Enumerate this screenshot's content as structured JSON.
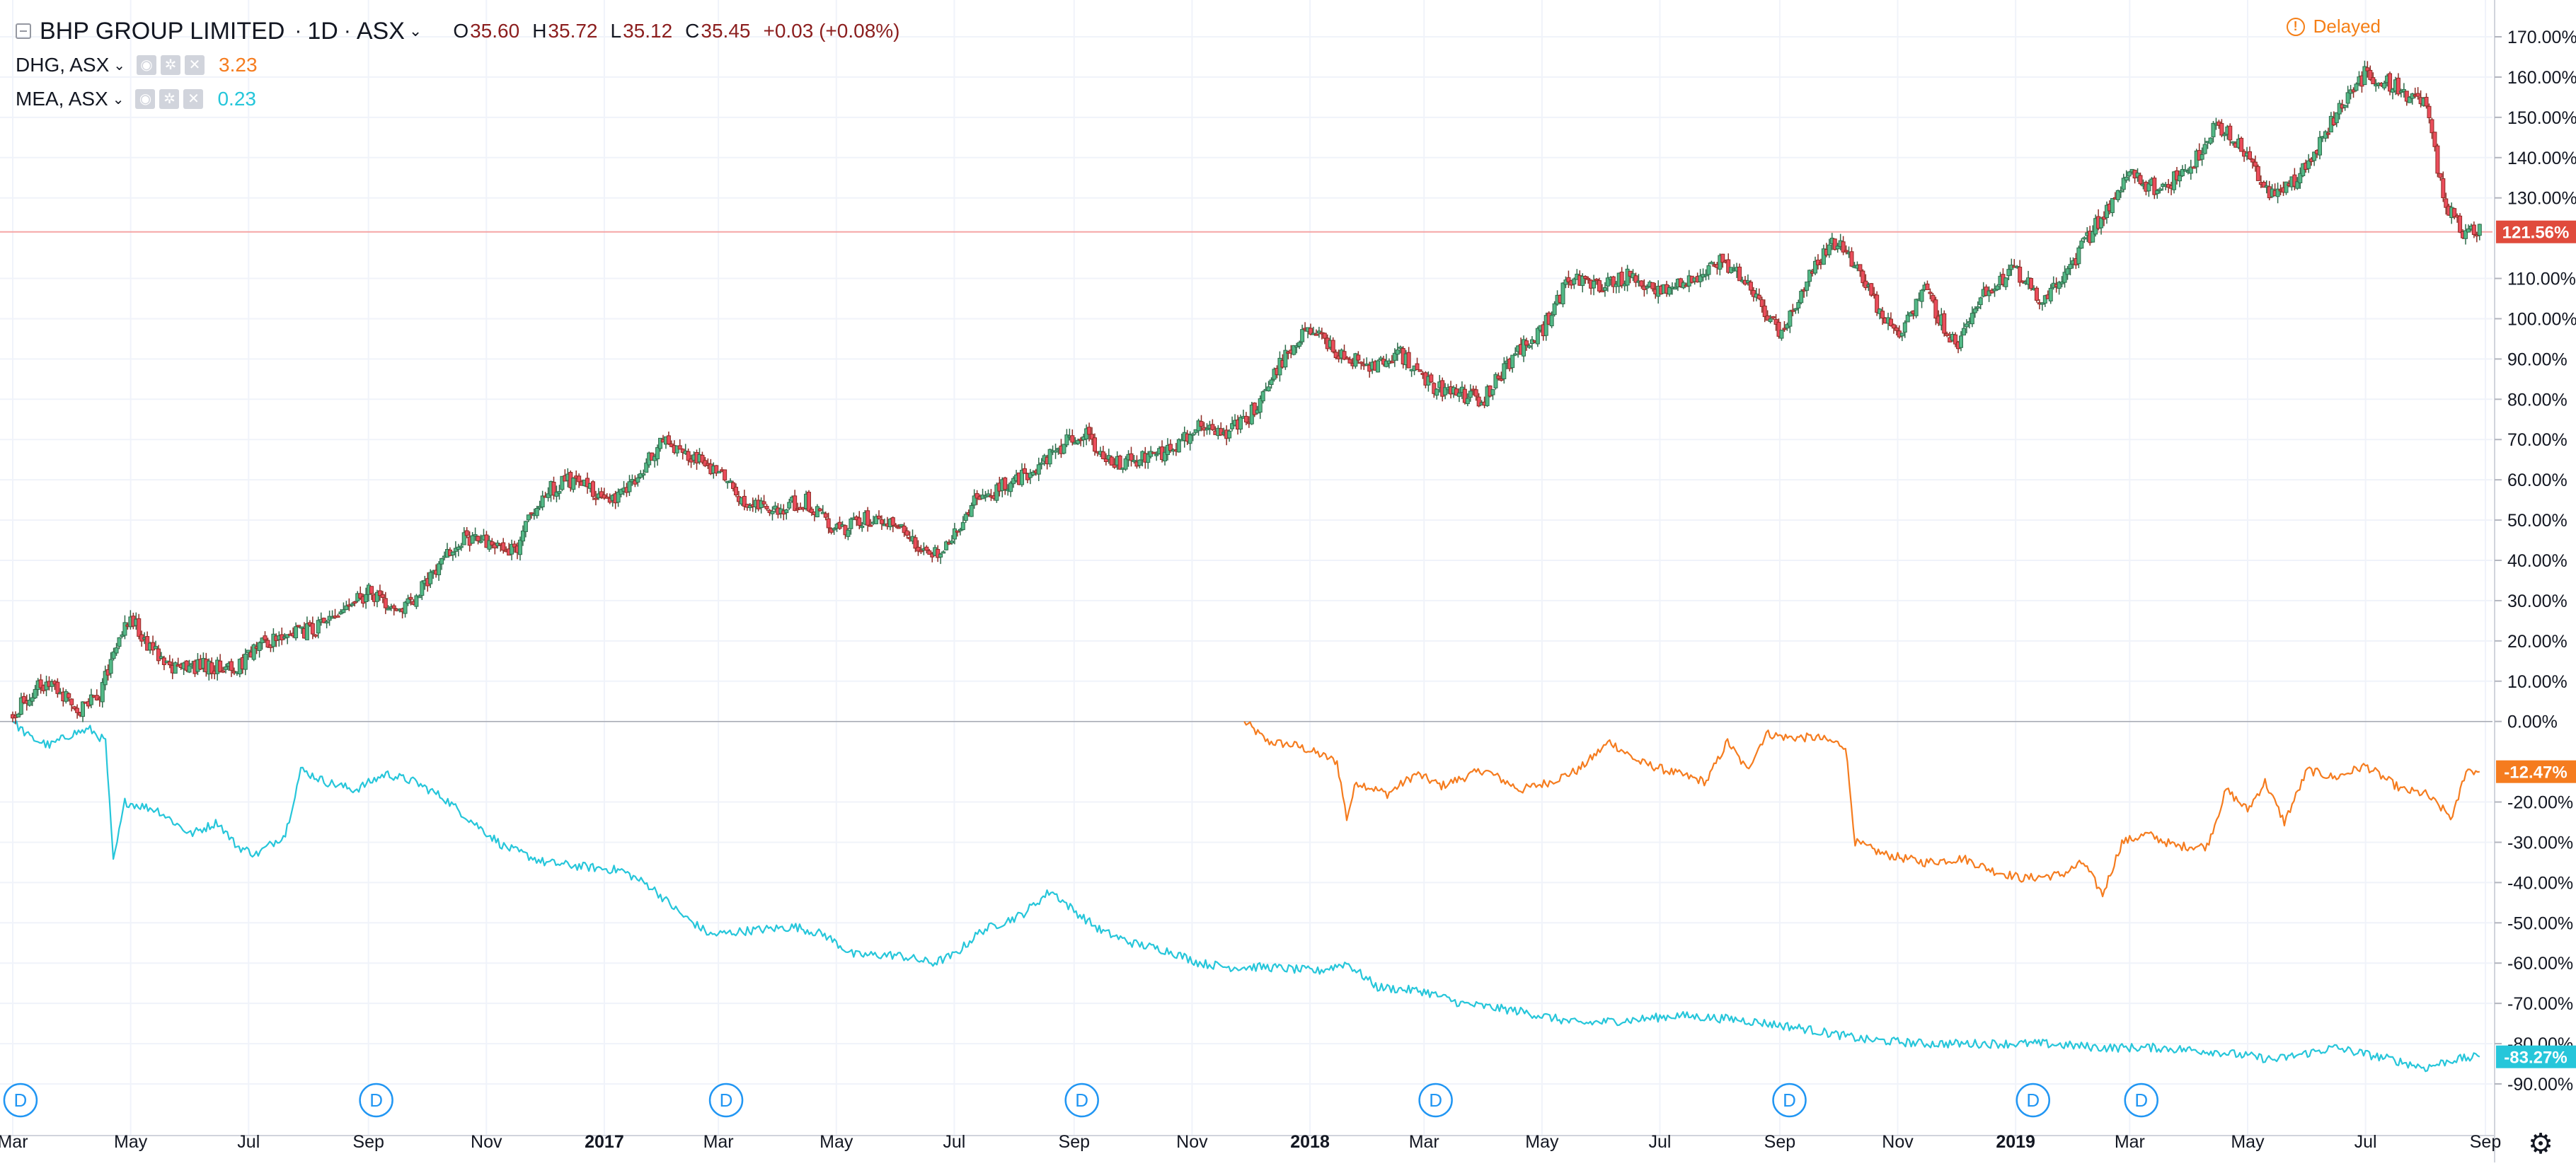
{
  "legend": {
    "main": {
      "title": "BHP GROUP LIMITED",
      "interval": "1D",
      "exchange": "ASX",
      "open_label": "O",
      "open": "35.60",
      "high_label": "H",
      "high": "35.72",
      "low_label": "L",
      "low": "35.12",
      "close_label": "C",
      "close": "35.45",
      "change": "+0.03 (+0.08%)"
    },
    "compare": [
      {
        "symbol": "DHG, ASX",
        "value": "3.23",
        "color": "#f57c1f"
      },
      {
        "symbol": "MEA, ASX",
        "value": "0.23",
        "color": "#26c6da"
      }
    ]
  },
  "status": {
    "delayed": "Delayed",
    "icon": "info-icon"
  },
  "colors": {
    "up": "#53b987",
    "down": "#eb4d5c",
    "up_dark": "#2e6b4a",
    "down_dark": "#8f2b24",
    "dhg": "#f57c1f",
    "mea": "#26c6da",
    "price_line": "#f5a5a5",
    "zero_line": "#9598a1",
    "grid": "#f0f3fa",
    "axis_text": "#131722"
  },
  "chart_data": {
    "type": "line",
    "title": "BHP GROUP LIMITED",
    "xlabel": "",
    "ylabel": "",
    "y_unit": "%",
    "ylim": [
      -96,
      176
    ],
    "x_range": [
      "2016-03-01",
      "2019-09-01"
    ],
    "grid": true,
    "legend_position": "top-left",
    "x_ticks": [
      {
        "date": "2016-03-01",
        "label": "Mar",
        "bold": false
      },
      {
        "date": "2016-05-01",
        "label": "May",
        "bold": false
      },
      {
        "date": "2016-07-01",
        "label": "Jul",
        "bold": false
      },
      {
        "date": "2016-09-01",
        "label": "Sep",
        "bold": false
      },
      {
        "date": "2016-11-01",
        "label": "Nov",
        "bold": false
      },
      {
        "date": "2017-01-01",
        "label": "2017",
        "bold": true
      },
      {
        "date": "2017-03-01",
        "label": "Mar",
        "bold": false
      },
      {
        "date": "2017-05-01",
        "label": "May",
        "bold": false
      },
      {
        "date": "2017-07-01",
        "label": "Jul",
        "bold": false
      },
      {
        "date": "2017-09-01",
        "label": "Sep",
        "bold": false
      },
      {
        "date": "2017-11-01",
        "label": "Nov",
        "bold": false
      },
      {
        "date": "2018-01-01",
        "label": "2018",
        "bold": true
      },
      {
        "date": "2018-03-01",
        "label": "Mar",
        "bold": false
      },
      {
        "date": "2018-05-01",
        "label": "May",
        "bold": false
      },
      {
        "date": "2018-07-01",
        "label": "Jul",
        "bold": false
      },
      {
        "date": "2018-09-01",
        "label": "Sep",
        "bold": false
      },
      {
        "date": "2018-11-01",
        "label": "Nov",
        "bold": false
      },
      {
        "date": "2019-01-01",
        "label": "2019",
        "bold": true
      },
      {
        "date": "2019-03-01",
        "label": "Mar",
        "bold": false
      },
      {
        "date": "2019-05-01",
        "label": "May",
        "bold": false
      },
      {
        "date": "2019-07-01",
        "label": "Jul",
        "bold": false
      },
      {
        "date": "2019-09-01",
        "label": "Sep",
        "bold": false
      }
    ],
    "y_ticks": [
      {
        "value": 170,
        "label": "170.00%"
      },
      {
        "value": 160,
        "label": "160.00%"
      },
      {
        "value": 150,
        "label": "150.00%"
      },
      {
        "value": 140,
        "label": "140.00%"
      },
      {
        "value": 130,
        "label": "130.00%"
      },
      {
        "value": 110,
        "label": "110.00%"
      },
      {
        "value": 100,
        "label": "100.00%"
      },
      {
        "value": 90,
        "label": "90.00%"
      },
      {
        "value": 80,
        "label": "80.00%"
      },
      {
        "value": 70,
        "label": "70.00%"
      },
      {
        "value": 60,
        "label": "60.00%"
      },
      {
        "value": 50,
        "label": "50.00%"
      },
      {
        "value": 40,
        "label": "40.00%"
      },
      {
        "value": 30,
        "label": "30.00%"
      },
      {
        "value": 20,
        "label": "20.00%"
      },
      {
        "value": 10,
        "label": "10.00%"
      },
      {
        "value": 0,
        "label": "0.00%"
      },
      {
        "value": -20,
        "label": "-20.00%"
      },
      {
        "value": -30,
        "label": "-30.00%"
      },
      {
        "value": -40,
        "label": "-40.00%"
      },
      {
        "value": -50,
        "label": "-50.00%"
      },
      {
        "value": -60,
        "label": "-60.00%"
      },
      {
        "value": -70,
        "label": "-70.00%"
      },
      {
        "value": -80,
        "label": "-80.00%"
      },
      {
        "value": -90,
        "label": "-90.00%"
      }
    ],
    "price_labels": [
      {
        "series": "BHP",
        "value": 121.56,
        "label": "121.56%",
        "color": "#e04b3c"
      },
      {
        "series": "DHG",
        "value": -12.47,
        "label": "-12.47%",
        "color": "#f57c1f"
      },
      {
        "series": "MEA",
        "value": -83.27,
        "label": "-83.27%",
        "color": "#26c6da"
      }
    ],
    "dividends": {
      "label": "D",
      "dates": [
        "2016-03-05",
        "2016-09-05",
        "2017-03-05",
        "2017-09-05",
        "2018-03-07",
        "2018-09-06",
        "2019-01-10",
        "2019-03-07"
      ]
    },
    "series": [
      {
        "name": "BHP GROUP LIMITED",
        "kind": "candlestick",
        "points": [
          [
            "2016-03-01",
            2
          ],
          [
            "2016-03-15",
            10
          ],
          [
            "2016-03-25",
            8
          ],
          [
            "2016-04-05",
            3
          ],
          [
            "2016-04-15",
            6
          ],
          [
            "2016-04-25",
            22
          ],
          [
            "2016-05-01",
            27
          ],
          [
            "2016-05-10",
            18
          ],
          [
            "2016-05-25",
            13
          ],
          [
            "2016-06-10",
            14
          ],
          [
            "2016-06-25",
            13
          ],
          [
            "2016-07-05",
            19
          ],
          [
            "2016-07-20",
            21
          ],
          [
            "2016-08-05",
            23
          ],
          [
            "2016-08-20",
            28
          ],
          [
            "2016-09-01",
            32
          ],
          [
            "2016-09-15",
            26
          ],
          [
            "2016-09-25",
            30
          ],
          [
            "2016-10-05",
            38
          ],
          [
            "2016-10-20",
            45
          ],
          [
            "2016-11-05",
            44
          ],
          [
            "2016-11-15",
            42
          ],
          [
            "2016-12-01",
            57
          ],
          [
            "2016-12-15",
            60
          ],
          [
            "2017-01-05",
            54
          ],
          [
            "2017-01-20",
            62
          ],
          [
            "2017-02-01",
            70
          ],
          [
            "2017-02-15",
            66
          ],
          [
            "2017-03-01",
            62
          ],
          [
            "2017-03-15",
            53
          ],
          [
            "2017-04-01",
            53
          ],
          [
            "2017-04-15",
            55
          ],
          [
            "2017-05-01",
            47
          ],
          [
            "2017-05-15",
            50
          ],
          [
            "2017-06-01",
            50
          ],
          [
            "2017-06-15",
            42
          ],
          [
            "2017-06-25",
            41
          ],
          [
            "2017-07-10",
            54
          ],
          [
            "2017-07-25",
            58
          ],
          [
            "2017-08-10",
            62
          ],
          [
            "2017-08-25",
            68
          ],
          [
            "2017-09-05",
            72
          ],
          [
            "2017-09-20",
            64
          ],
          [
            "2017-10-05",
            65
          ],
          [
            "2017-10-20",
            67
          ],
          [
            "2017-11-05",
            73
          ],
          [
            "2017-11-20",
            72
          ],
          [
            "2017-12-01",
            76
          ],
          [
            "2017-12-15",
            88
          ],
          [
            "2018-01-01",
            98
          ],
          [
            "2018-01-15",
            92
          ],
          [
            "2018-02-01",
            88
          ],
          [
            "2018-02-15",
            92
          ],
          [
            "2018-03-01",
            84
          ],
          [
            "2018-03-15",
            82
          ],
          [
            "2018-04-01",
            80
          ],
          [
            "2018-04-15",
            90
          ],
          [
            "2018-05-01",
            97
          ],
          [
            "2018-05-15",
            110
          ],
          [
            "2018-06-01",
            108
          ],
          [
            "2018-06-15",
            111
          ],
          [
            "2018-07-01",
            107
          ],
          [
            "2018-07-15",
            109
          ],
          [
            "2018-08-01",
            114
          ],
          [
            "2018-08-15",
            110
          ],
          [
            "2018-09-01",
            96
          ],
          [
            "2018-09-15",
            110
          ],
          [
            "2018-10-01",
            120
          ],
          [
            "2018-10-15",
            108
          ],
          [
            "2018-11-01",
            95
          ],
          [
            "2018-11-15",
            107
          ],
          [
            "2018-12-01",
            93
          ],
          [
            "2018-12-15",
            107
          ],
          [
            "2019-01-01",
            112
          ],
          [
            "2019-01-15",
            104
          ],
          [
            "2019-02-01",
            115
          ],
          [
            "2019-02-15",
            126
          ],
          [
            "2019-03-01",
            136
          ],
          [
            "2019-03-15",
            132
          ],
          [
            "2019-04-01",
            137
          ],
          [
            "2019-04-15",
            149
          ],
          [
            "2019-05-01",
            140
          ],
          [
            "2019-05-15",
            130
          ],
          [
            "2019-06-01",
            138
          ],
          [
            "2019-06-15",
            150
          ],
          [
            "2019-07-01",
            161
          ],
          [
            "2019-07-15",
            158
          ],
          [
            "2019-08-01",
            153
          ],
          [
            "2019-08-10",
            130
          ],
          [
            "2019-08-20",
            121
          ],
          [
            "2019-08-29",
            121.56
          ]
        ]
      },
      {
        "name": "DHG, ASX",
        "kind": "line",
        "points": [
          [
            "2017-11-28",
            0
          ],
          [
            "2017-12-10",
            -5
          ],
          [
            "2017-12-25",
            -6
          ],
          [
            "2018-01-05",
            -8
          ],
          [
            "2018-01-15",
            -10
          ],
          [
            "2018-01-20",
            -24
          ],
          [
            "2018-01-25",
            -15
          ],
          [
            "2018-02-10",
            -18
          ],
          [
            "2018-02-25",
            -13
          ],
          [
            "2018-03-10",
            -16
          ],
          [
            "2018-04-01",
            -12
          ],
          [
            "2018-04-20",
            -17
          ],
          [
            "2018-05-05",
            -15
          ],
          [
            "2018-05-20",
            -12
          ],
          [
            "2018-06-05",
            -5
          ],
          [
            "2018-06-20",
            -10
          ],
          [
            "2018-07-10",
            -13
          ],
          [
            "2018-07-25",
            -15
          ],
          [
            "2018-08-05",
            -5
          ],
          [
            "2018-08-15",
            -12
          ],
          [
            "2018-08-25",
            -3
          ],
          [
            "2018-09-05",
            -4
          ],
          [
            "2018-09-20",
            -4
          ],
          [
            "2018-10-05",
            -6
          ],
          [
            "2018-10-10",
            -30
          ],
          [
            "2018-10-25",
            -33
          ],
          [
            "2018-11-15",
            -35
          ],
          [
            "2018-12-05",
            -34
          ],
          [
            "2018-12-20",
            -37
          ],
          [
            "2019-01-05",
            -39
          ],
          [
            "2019-01-25",
            -38
          ],
          [
            "2019-02-05",
            -35
          ],
          [
            "2019-02-15",
            -43
          ],
          [
            "2019-02-25",
            -30
          ],
          [
            "2019-03-10",
            -28
          ],
          [
            "2019-03-25",
            -31
          ],
          [
            "2019-04-10",
            -31
          ],
          [
            "2019-04-20",
            -17
          ],
          [
            "2019-05-01",
            -22
          ],
          [
            "2019-05-10",
            -15
          ],
          [
            "2019-05-20",
            -25
          ],
          [
            "2019-06-01",
            -12
          ],
          [
            "2019-06-15",
            -14
          ],
          [
            "2019-07-01",
            -11
          ],
          [
            "2019-07-20",
            -17
          ],
          [
            "2019-08-01",
            -18
          ],
          [
            "2019-08-15",
            -24
          ],
          [
            "2019-08-22",
            -12
          ],
          [
            "2019-08-29",
            -12.47
          ]
        ]
      },
      {
        "name": "MEA, ASX",
        "kind": "line",
        "points": [
          [
            "2016-03-01",
            0
          ],
          [
            "2016-03-10",
            -4
          ],
          [
            "2016-03-20",
            -6
          ],
          [
            "2016-04-01",
            -3
          ],
          [
            "2016-04-10",
            -2
          ],
          [
            "2016-04-18",
            -5
          ],
          [
            "2016-04-22",
            -35
          ],
          [
            "2016-04-28",
            -20
          ],
          [
            "2016-05-15",
            -22
          ],
          [
            "2016-06-01",
            -28
          ],
          [
            "2016-06-15",
            -25
          ],
          [
            "2016-06-25",
            -31
          ],
          [
            "2016-07-05",
            -33
          ],
          [
            "2016-07-20",
            -28
          ],
          [
            "2016-07-28",
            -12
          ],
          [
            "2016-08-10",
            -15
          ],
          [
            "2016-08-25",
            -17
          ],
          [
            "2016-09-10",
            -13
          ],
          [
            "2016-09-25",
            -15
          ],
          [
            "2016-10-10",
            -19
          ],
          [
            "2016-10-25",
            -25
          ],
          [
            "2016-11-10",
            -31
          ],
          [
            "2016-12-01",
            -35
          ],
          [
            "2016-12-20",
            -36
          ],
          [
            "2017-01-10",
            -37
          ],
          [
            "2017-01-25",
            -41
          ],
          [
            "2017-02-10",
            -48
          ],
          [
            "2017-02-25",
            -53
          ],
          [
            "2017-03-15",
            -52
          ],
          [
            "2017-04-10",
            -51
          ],
          [
            "2017-04-25",
            -53
          ],
          [
            "2017-05-10",
            -58
          ],
          [
            "2017-06-01",
            -58
          ],
          [
            "2017-06-20",
            -60
          ],
          [
            "2017-07-01",
            -58
          ],
          [
            "2017-07-15",
            -52
          ],
          [
            "2017-08-05",
            -48
          ],
          [
            "2017-08-20",
            -42
          ],
          [
            "2017-09-01",
            -47
          ],
          [
            "2017-09-15",
            -52
          ],
          [
            "2017-10-01",
            -55
          ],
          [
            "2017-10-20",
            -57
          ],
          [
            "2017-11-05",
            -60
          ],
          [
            "2017-11-20",
            -61
          ],
          [
            "2017-12-10",
            -61
          ],
          [
            "2018-01-05",
            -62
          ],
          [
            "2018-01-20",
            -60
          ],
          [
            "2018-02-05",
            -66
          ],
          [
            "2018-03-01",
            -67
          ],
          [
            "2018-03-20",
            -70
          ],
          [
            "2018-04-20",
            -72
          ],
          [
            "2018-05-20",
            -75
          ],
          [
            "2018-06-20",
            -74
          ],
          [
            "2018-07-10",
            -73
          ],
          [
            "2018-08-10",
            -74
          ],
          [
            "2018-09-10",
            -76
          ],
          [
            "2018-10-15",
            -79
          ],
          [
            "2018-11-15",
            -80
          ],
          [
            "2018-12-15",
            -80
          ],
          [
            "2019-01-15",
            -80
          ],
          [
            "2019-02-15",
            -81
          ],
          [
            "2019-03-15",
            -81
          ],
          [
            "2019-04-15",
            -82
          ],
          [
            "2019-05-15",
            -84
          ],
          [
            "2019-06-15",
            -81
          ],
          [
            "2019-07-15",
            -84
          ],
          [
            "2019-08-01",
            -86
          ],
          [
            "2019-08-15",
            -84
          ],
          [
            "2019-08-29",
            -83.27
          ]
        ]
      }
    ]
  }
}
